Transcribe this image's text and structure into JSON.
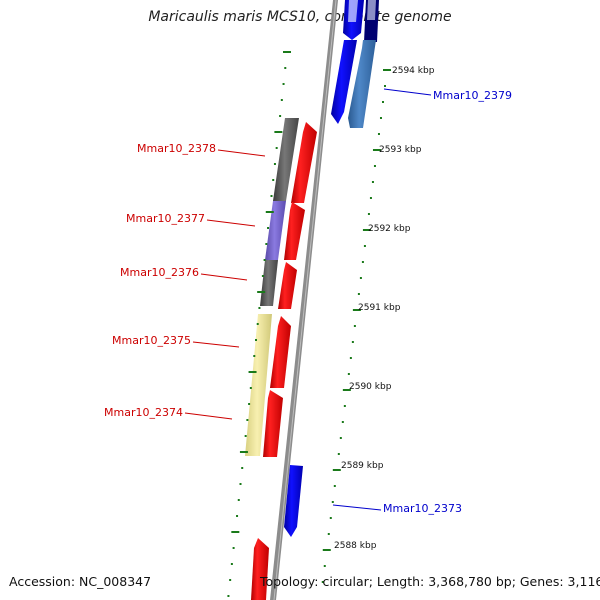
{
  "title": "Maricaulis maris MCS10, complete genome",
  "accession_text": "Accession: NC_008347",
  "summary_text": "Topology: circular; Length: 3,368,780 bp; Genes: 3,116",
  "colors": {
    "forward_cds": "#ff0000",
    "reverse_cds": "#0000ff",
    "backbone": "#888888",
    "tick": "#1a7a1a",
    "label_red": "#cc0000",
    "label_blue": "#0000cc"
  },
  "scale_ticks": [
    {
      "label": "2594 kbp"
    },
    {
      "label": "2593 kbp"
    },
    {
      "label": "2592 kbp"
    },
    {
      "label": "2591 kbp"
    },
    {
      "label": "2590 kbp"
    },
    {
      "label": "2589 kbp"
    },
    {
      "label": "2588 kbp"
    }
  ],
  "gene_labels": [
    {
      "label": "Mmar10_2379"
    },
    {
      "label": "Mmar10_2378"
    },
    {
      "label": "Mmar10_2377"
    },
    {
      "label": "Mmar10_2376"
    },
    {
      "label": "Mmar10_2375"
    },
    {
      "label": "Mmar10_2374"
    },
    {
      "label": "Mmar10_2373"
    }
  ]
}
